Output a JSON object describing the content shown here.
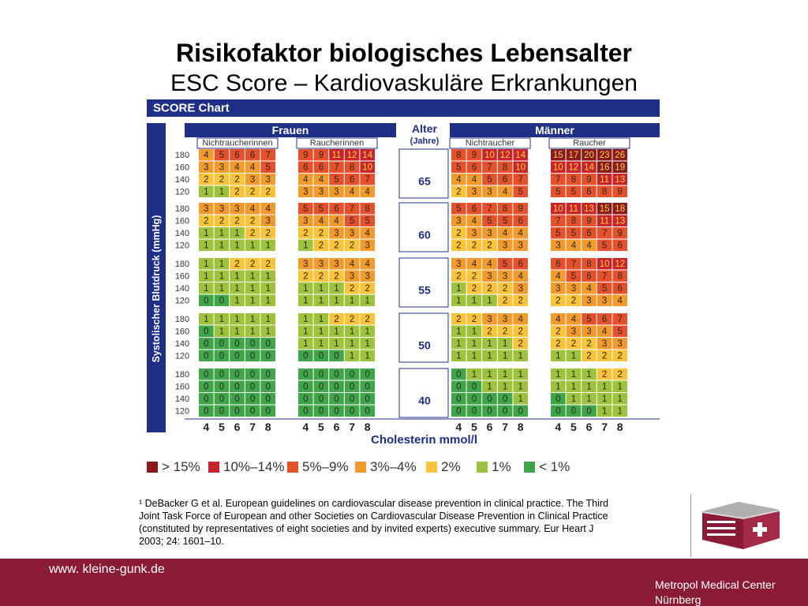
{
  "title": "Risikofaktor biologisches Lebensalter",
  "subtitle": "ESC Score – Kardiovaskuläre Erkrankungen",
  "chart_data": {
    "type": "heatmap",
    "header": "SCORE Chart",
    "group_women": "Frauen",
    "group_men": "Männer",
    "age_header": "Alter",
    "age_header_unit": "(Jahre)",
    "sub_women_nonsmoker": "Nichtraucherinnen",
    "sub_women_smoker": "Raucherinnen",
    "sub_men_nonsmoker": "Nichtraucher",
    "sub_men_smoker": "Raucher",
    "ylabel": "Systolischer Blutdruck (mmHg)",
    "xlabel": "Cholesterin mmol/l",
    "bp_levels": [
      "180",
      "160",
      "140",
      "120"
    ],
    "cholesterol_levels": [
      "4",
      "5",
      "6",
      "7",
      "8"
    ],
    "ages": [
      {
        "age": "65",
        "women_nonsmoker": [
          [
            4,
            5,
            6,
            6,
            7
          ],
          [
            3,
            3,
            4,
            4,
            5
          ],
          [
            2,
            2,
            2,
            3,
            3
          ],
          [
            1,
            1,
            2,
            2,
            2
          ]
        ],
        "women_smoker": [
          [
            9,
            9,
            11,
            12,
            14
          ],
          [
            6,
            6,
            7,
            8,
            10
          ],
          [
            4,
            4,
            5,
            6,
            7
          ],
          [
            3,
            3,
            3,
            4,
            4
          ]
        ],
        "men_nonsmoker": [
          [
            8,
            9,
            10,
            12,
            14
          ],
          [
            5,
            6,
            7,
            8,
            10
          ],
          [
            4,
            4,
            5,
            6,
            7
          ],
          [
            2,
            3,
            3,
            4,
            5
          ]
        ],
        "men_smoker": [
          [
            15,
            17,
            20,
            23,
            26
          ],
          [
            10,
            12,
            14,
            16,
            19
          ],
          [
            7,
            8,
            9,
            11,
            13
          ],
          [
            5,
            5,
            6,
            8,
            9
          ]
        ]
      },
      {
        "age": "60",
        "women_nonsmoker": [
          [
            3,
            3,
            3,
            4,
            4
          ],
          [
            2,
            2,
            2,
            2,
            3
          ],
          [
            1,
            1,
            1,
            2,
            2
          ],
          [
            1,
            1,
            1,
            1,
            1
          ]
        ],
        "women_smoker": [
          [
            5,
            5,
            6,
            7,
            8
          ],
          [
            3,
            4,
            4,
            5,
            5
          ],
          [
            2,
            2,
            3,
            3,
            4
          ],
          [
            1,
            2,
            2,
            2,
            3
          ]
        ],
        "men_nonsmoker": [
          [
            5,
            6,
            7,
            8,
            9
          ],
          [
            3,
            4,
            5,
            5,
            6
          ],
          [
            2,
            3,
            3,
            4,
            4
          ],
          [
            2,
            2,
            2,
            3,
            3
          ]
        ],
        "men_smoker": [
          [
            10,
            11,
            13,
            15,
            18
          ],
          [
            7,
            8,
            9,
            11,
            13
          ],
          [
            5,
            5,
            6,
            7,
            9
          ],
          [
            3,
            4,
            4,
            5,
            6
          ]
        ]
      },
      {
        "age": "55",
        "women_nonsmoker": [
          [
            1,
            1,
            2,
            2,
            2
          ],
          [
            1,
            1,
            1,
            1,
            1
          ],
          [
            1,
            1,
            1,
            1,
            1
          ],
          [
            0,
            0,
            1,
            1,
            1
          ]
        ],
        "women_smoker": [
          [
            3,
            3,
            3,
            4,
            4
          ],
          [
            2,
            2,
            2,
            3,
            3
          ],
          [
            1,
            1,
            1,
            2,
            2
          ],
          [
            1,
            1,
            1,
            1,
            1
          ]
        ],
        "men_nonsmoker": [
          [
            3,
            4,
            4,
            5,
            6
          ],
          [
            2,
            2,
            3,
            3,
            4
          ],
          [
            1,
            2,
            2,
            2,
            3
          ],
          [
            1,
            1,
            1,
            2,
            2
          ]
        ],
        "men_smoker": [
          [
            6,
            7,
            8,
            10,
            12
          ],
          [
            4,
            5,
            6,
            7,
            8
          ],
          [
            3,
            3,
            4,
            5,
            6
          ],
          [
            2,
            2,
            3,
            3,
            4
          ]
        ]
      },
      {
        "age": "50",
        "women_nonsmoker": [
          [
            1,
            1,
            1,
            1,
            1
          ],
          [
            0,
            1,
            1,
            1,
            1
          ],
          [
            0,
            0,
            0,
            0,
            0
          ],
          [
            0,
            0,
            0,
            0,
            0
          ]
        ],
        "women_smoker": [
          [
            1,
            1,
            2,
            2,
            2
          ],
          [
            1,
            1,
            1,
            1,
            1
          ],
          [
            1,
            1,
            1,
            1,
            1
          ],
          [
            0,
            0,
            0,
            1,
            1
          ]
        ],
        "men_nonsmoker": [
          [
            2,
            2,
            3,
            3,
            4
          ],
          [
            1,
            1,
            2,
            2,
            2
          ],
          [
            1,
            1,
            1,
            1,
            2
          ],
          [
            1,
            1,
            1,
            1,
            1
          ]
        ],
        "men_smoker": [
          [
            4,
            4,
            5,
            6,
            7
          ],
          [
            2,
            3,
            3,
            4,
            5
          ],
          [
            2,
            2,
            2,
            3,
            3
          ],
          [
            1,
            1,
            2,
            2,
            2
          ]
        ]
      },
      {
        "age": "40",
        "women_nonsmoker": [
          [
            0,
            0,
            0,
            0,
            0
          ],
          [
            0,
            0,
            0,
            0,
            0
          ],
          [
            0,
            0,
            0,
            0,
            0
          ],
          [
            0,
            0,
            0,
            0,
            0
          ]
        ],
        "women_smoker": [
          [
            0,
            0,
            0,
            0,
            0
          ],
          [
            0,
            0,
            0,
            0,
            0
          ],
          [
            0,
            0,
            0,
            0,
            0
          ],
          [
            0,
            0,
            0,
            0,
            0
          ]
        ],
        "men_nonsmoker": [
          [
            0,
            1,
            1,
            1,
            1
          ],
          [
            0,
            0,
            1,
            1,
            1
          ],
          [
            0,
            0,
            0,
            0,
            1
          ],
          [
            0,
            0,
            0,
            0,
            0
          ]
        ],
        "men_smoker": [
          [
            1,
            1,
            1,
            2,
            2
          ],
          [
            1,
            1,
            1,
            1,
            1
          ],
          [
            0,
            1,
            1,
            1,
            1
          ],
          [
            0,
            0,
            0,
            1,
            1
          ]
        ]
      }
    ],
    "legend": [
      {
        "label": "> 15%",
        "color": "#8b1a1a"
      },
      {
        "label": "10%–14%",
        "color": "#c8242a"
      },
      {
        "label": "5%–9%",
        "color": "#e6502a"
      },
      {
        "label": "3%–4%",
        "color": "#f39a2c"
      },
      {
        "label": "2%",
        "color": "#f9c33a"
      },
      {
        "label": "1%",
        "color": "#9cc33b"
      },
      {
        "label": "< 1%",
        "color": "#3fa548"
      }
    ]
  },
  "footnote": "¹ DeBacker G et al. European guidelines on cardiovascular disease prevention in clinical practice. The Third Joint Task Force of European and other Societies on Cardiovascular Disease Prevention in Clinical Practice (constituted by representatives of eight societies and by invited experts) executive summary. Eur Heart J 2003; 24: 1601–10.",
  "footer": {
    "url": "www. kleine-gunk.de",
    "org_line1": "Metropol Medical Center",
    "org_line2": "Nürnberg"
  },
  "colors": {
    "navy": "#1f2f86",
    "footer_bg": "#8a1b36"
  }
}
